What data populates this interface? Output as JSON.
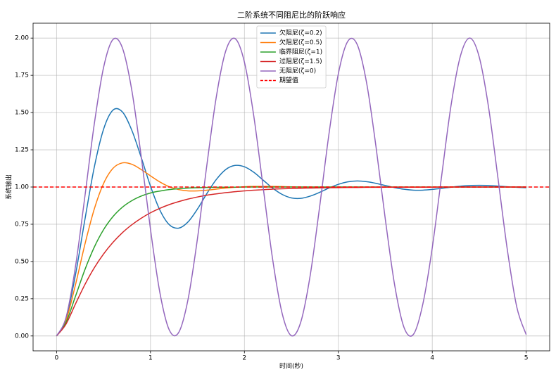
{
  "chart_data": {
    "type": "line",
    "title": "二阶系统不同阻尼比的阶跃响应",
    "xlabel": "时间(秒)",
    "ylabel": "系统输出",
    "x": [
      0,
      0.1,
      0.2,
      0.3,
      0.4,
      0.5,
      0.6,
      0.7,
      0.8,
      0.9,
      1,
      1.1,
      1.2,
      1.3,
      1.4,
      1.5,
      1.6,
      1.7,
      1.8,
      1.9,
      2,
      2.1,
      2.2,
      2.3,
      2.4,
      2.5,
      2.6,
      2.7,
      2.8,
      2.9,
      3,
      3.1,
      3.2,
      3.3,
      3.4,
      3.5,
      3.6,
      3.7,
      3.8,
      3.9,
      4,
      4.1,
      4.2,
      4.3,
      4.4,
      4.5,
      4.6,
      4.7,
      4.8,
      4.9,
      5
    ],
    "series": [
      {
        "name": "欠阻尼(ζ=0.2)",
        "color": "#1f77b4",
        "values": [
          0,
          0.115,
          0.406,
          0.775,
          1.128,
          1.387,
          1.516,
          1.505,
          1.383,
          1.201,
          1.006,
          0.845,
          0.747,
          0.724,
          0.766,
          0.852,
          0.956,
          1.05,
          1.117,
          1.145,
          1.136,
          1.099,
          1.046,
          0.993,
          0.951,
          0.927,
          0.924,
          0.939,
          0.964,
          0.993,
          1.018,
          1.035,
          1.041,
          1.036,
          1.025,
          1.01,
          0.996,
          0.985,
          0.979,
          0.979,
          0.984,
          0.991,
          0.999,
          1.006,
          1.01,
          1.011,
          1.01,
          1.006,
          1.002,
          0.998,
          0.995
        ]
      },
      {
        "name": "欠阻尼(ζ=0.5)",
        "color": "#ff7f0e",
        "values": [
          0,
          0.104,
          0.34,
          0.611,
          0.849,
          1.023,
          1.125,
          1.162,
          1.153,
          1.118,
          1.075,
          1.034,
          1.002,
          0.983,
          0.974,
          0.974,
          0.979,
          0.986,
          0.993,
          0.998,
          1.002,
          1.004,
          1.004,
          1.004,
          1.003,
          1.001,
          1,
          1,
          1,
          1,
          1,
          1,
          1,
          1,
          1,
          1,
          1,
          1,
          1,
          1,
          1,
          1,
          1,
          1,
          1,
          1,
          1,
          1,
          1,
          1,
          1
        ]
      },
      {
        "name": "临界阻尼(ζ=1)",
        "color": "#2ca02c",
        "values": [
          0,
          0.09,
          0.264,
          0.442,
          0.594,
          0.713,
          0.801,
          0.864,
          0.908,
          0.939,
          0.96,
          0.973,
          0.983,
          0.989,
          0.993,
          0.995,
          0.997,
          0.998,
          0.999,
          0.999,
          1,
          1,
          1,
          1,
          1,
          1,
          1,
          1,
          1,
          1,
          1,
          1,
          1,
          1,
          1,
          1,
          1,
          1,
          1,
          1,
          1,
          1,
          1,
          1,
          1,
          1,
          1,
          1,
          1,
          1,
          1
        ]
      },
      {
        "name": "过阻尼(ζ=1.5)",
        "color": "#d62728",
        "values": [
          0,
          0.079,
          0.213,
          0.343,
          0.456,
          0.55,
          0.628,
          0.693,
          0.746,
          0.79,
          0.827,
          0.857,
          0.882,
          0.902,
          0.919,
          0.933,
          0.945,
          0.954,
          0.962,
          0.969,
          0.974,
          0.979,
          0.982,
          0.986,
          0.988,
          0.99,
          0.992,
          0.993,
          0.994,
          0.995,
          0.996,
          0.997,
          0.997,
          0.998,
          0.998,
          0.999,
          0.999,
          0.999,
          0.999,
          0.999,
          0.999,
          1,
          1,
          1,
          1,
          1,
          1,
          1,
          1,
          1,
          1
        ]
      },
      {
        "name": "无阻尼(ζ=0)",
        "color": "#9467bd",
        "values": [
          0,
          0.122,
          0.46,
          0.929,
          1.416,
          1.801,
          1.99,
          1.936,
          1.654,
          1.211,
          0.716,
          0.291,
          0.04,
          0.023,
          0.246,
          0.653,
          1.146,
          1.602,
          1.911,
          1.997,
          1.839,
          1.476,
          0.996,
          0.517,
          0.156,
          0.002,
          0.093,
          0.405,
          0.863,
          1.355,
          1.76,
          1.978,
          1.958,
          1.703,
          1.275,
          0.785,
          0.34,
          0.056,
          0.011,
          0.215,
          0.592,
          1.075,
          1.548,
          1.88,
          2,
          1.873,
          1.533,
          1.058,
          0.576,
          0.194,
          0.009
        ]
      }
    ],
    "hline": {
      "name": "期望值",
      "value": 1,
      "color": "#ff0000",
      "linestyle": "dashed"
    },
    "xlim": [
      -0.25,
      5.25
    ],
    "ylim": [
      -0.1,
      2.1
    ],
    "xticks": [
      0,
      1,
      2,
      3,
      4,
      5
    ],
    "yticks": [
      {
        "value": 0,
        "label": "0.00"
      },
      {
        "value": 0.25,
        "label": "0.25"
      },
      {
        "value": 0.5,
        "label": "0.50"
      },
      {
        "value": 0.75,
        "label": "0.75"
      },
      {
        "value": 1,
        "label": "1.00"
      },
      {
        "value": 1.25,
        "label": "1.25"
      },
      {
        "value": 1.5,
        "label": "1.50"
      },
      {
        "value": 1.75,
        "label": "1.75"
      },
      {
        "value": 2,
        "label": "2.00"
      }
    ],
    "grid": true,
    "legend": "upper center"
  }
}
